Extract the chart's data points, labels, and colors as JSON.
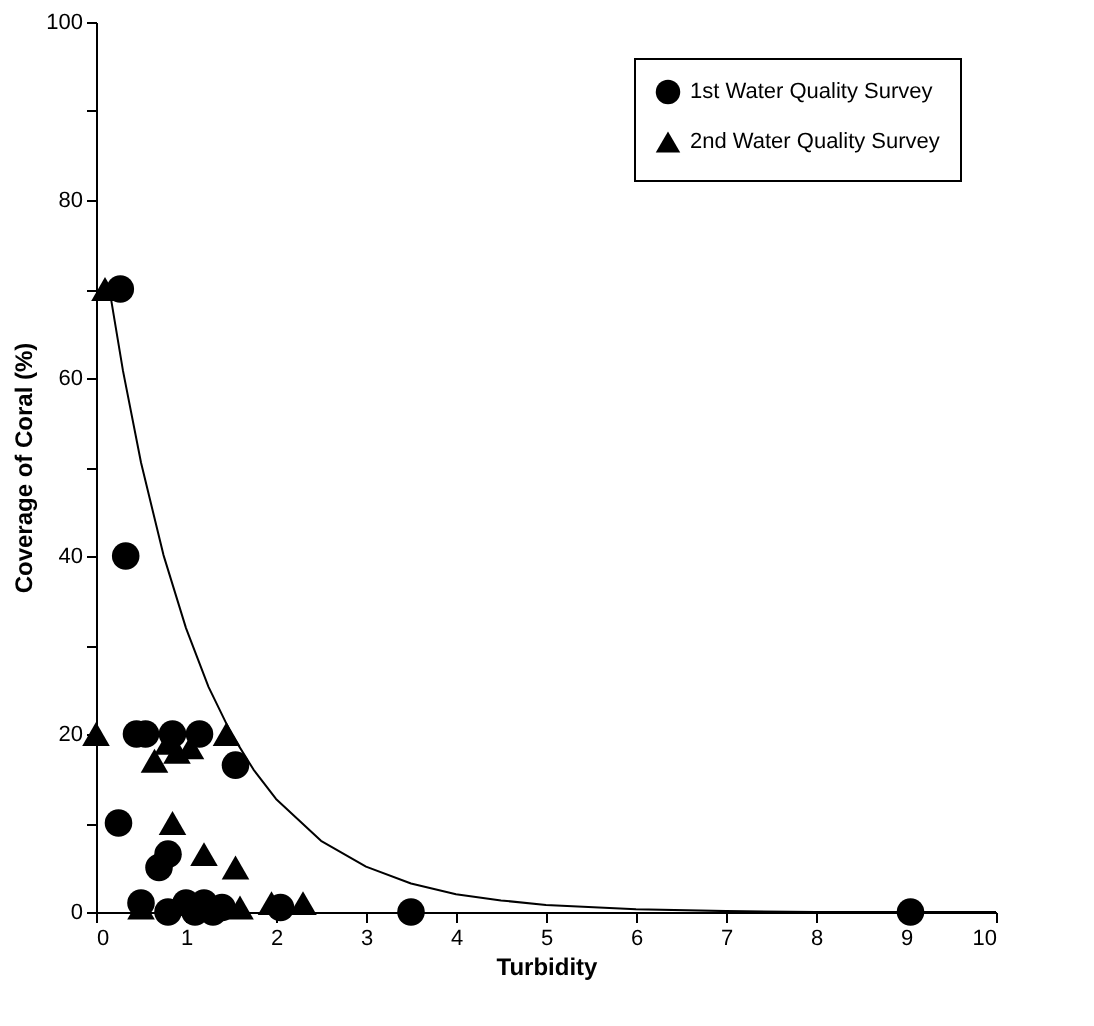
{
  "chart_data": {
    "type": "scatter",
    "xlabel": "Turbidity",
    "ylabel": "Coverage of Coral (%)",
    "xlim": [
      0,
      10
    ],
    "ylim": [
      0,
      100
    ],
    "xticks": [
      0,
      1,
      2,
      3,
      4,
      5,
      6,
      7,
      8,
      9,
      10
    ],
    "yticks": [
      0,
      {
        "value": 10,
        "label": null
      },
      20,
      {
        "value": 30,
        "label": null
      },
      40,
      {
        "value": 50,
        "label": null
      },
      60,
      {
        "value": 70,
        "label": null
      },
      80,
      {
        "value": 90,
        "label": null
      },
      100
    ],
    "grid": false,
    "legend": "top right",
    "series": [
      {
        "name": "1st Water Quality Survey",
        "marker": "circle",
        "color": "#000000",
        "x": [
          0.27,
          0.33,
          0.45,
          0.55,
          0.85,
          1.15,
          1.55,
          0.25,
          0.7,
          0.8,
          0.5,
          0.8,
          1.0,
          1.1,
          1.2,
          1.3,
          1.4,
          2.05,
          3.5,
          9.05
        ],
        "values": [
          70,
          40,
          20,
          20,
          20,
          20,
          16.5,
          10,
          5,
          6.5,
          1,
          0,
          1,
          0,
          1,
          0,
          0.5,
          0.5,
          0,
          0
        ]
      },
      {
        "name": "2nd Water Quality Survey",
        "marker": "triangle",
        "color": "#000000",
        "x": [
          0.1,
          0.0,
          1.45,
          0.65,
          0.8,
          0.9,
          1.05,
          0.85,
          1.2,
          1.55,
          0.5,
          1.6,
          1.95,
          2.3
        ],
        "values": [
          70,
          20,
          20,
          17,
          19,
          18,
          18.5,
          10,
          6.5,
          5,
          0.5,
          0.5,
          1,
          1
        ]
      },
      {
        "type": "line",
        "color": "#000000",
        "x": [
          0.15,
          0.3,
          0.5,
          0.75,
          1.0,
          1.25,
          1.5,
          1.75,
          2.0,
          2.5,
          3.0,
          3.5,
          4.0,
          4.5,
          5.0,
          6.0,
          7.0,
          8.0,
          9.0,
          10.0
        ],
        "values": [
          69.9,
          60.8,
          50.5,
          40.1,
          31.9,
          25.3,
          20.1,
          16.0,
          12.7,
          8.0,
          5.1,
          3.2,
          2.0,
          1.3,
          0.8,
          0.3,
          0.1,
          0,
          0,
          0
        ]
      }
    ]
  }
}
